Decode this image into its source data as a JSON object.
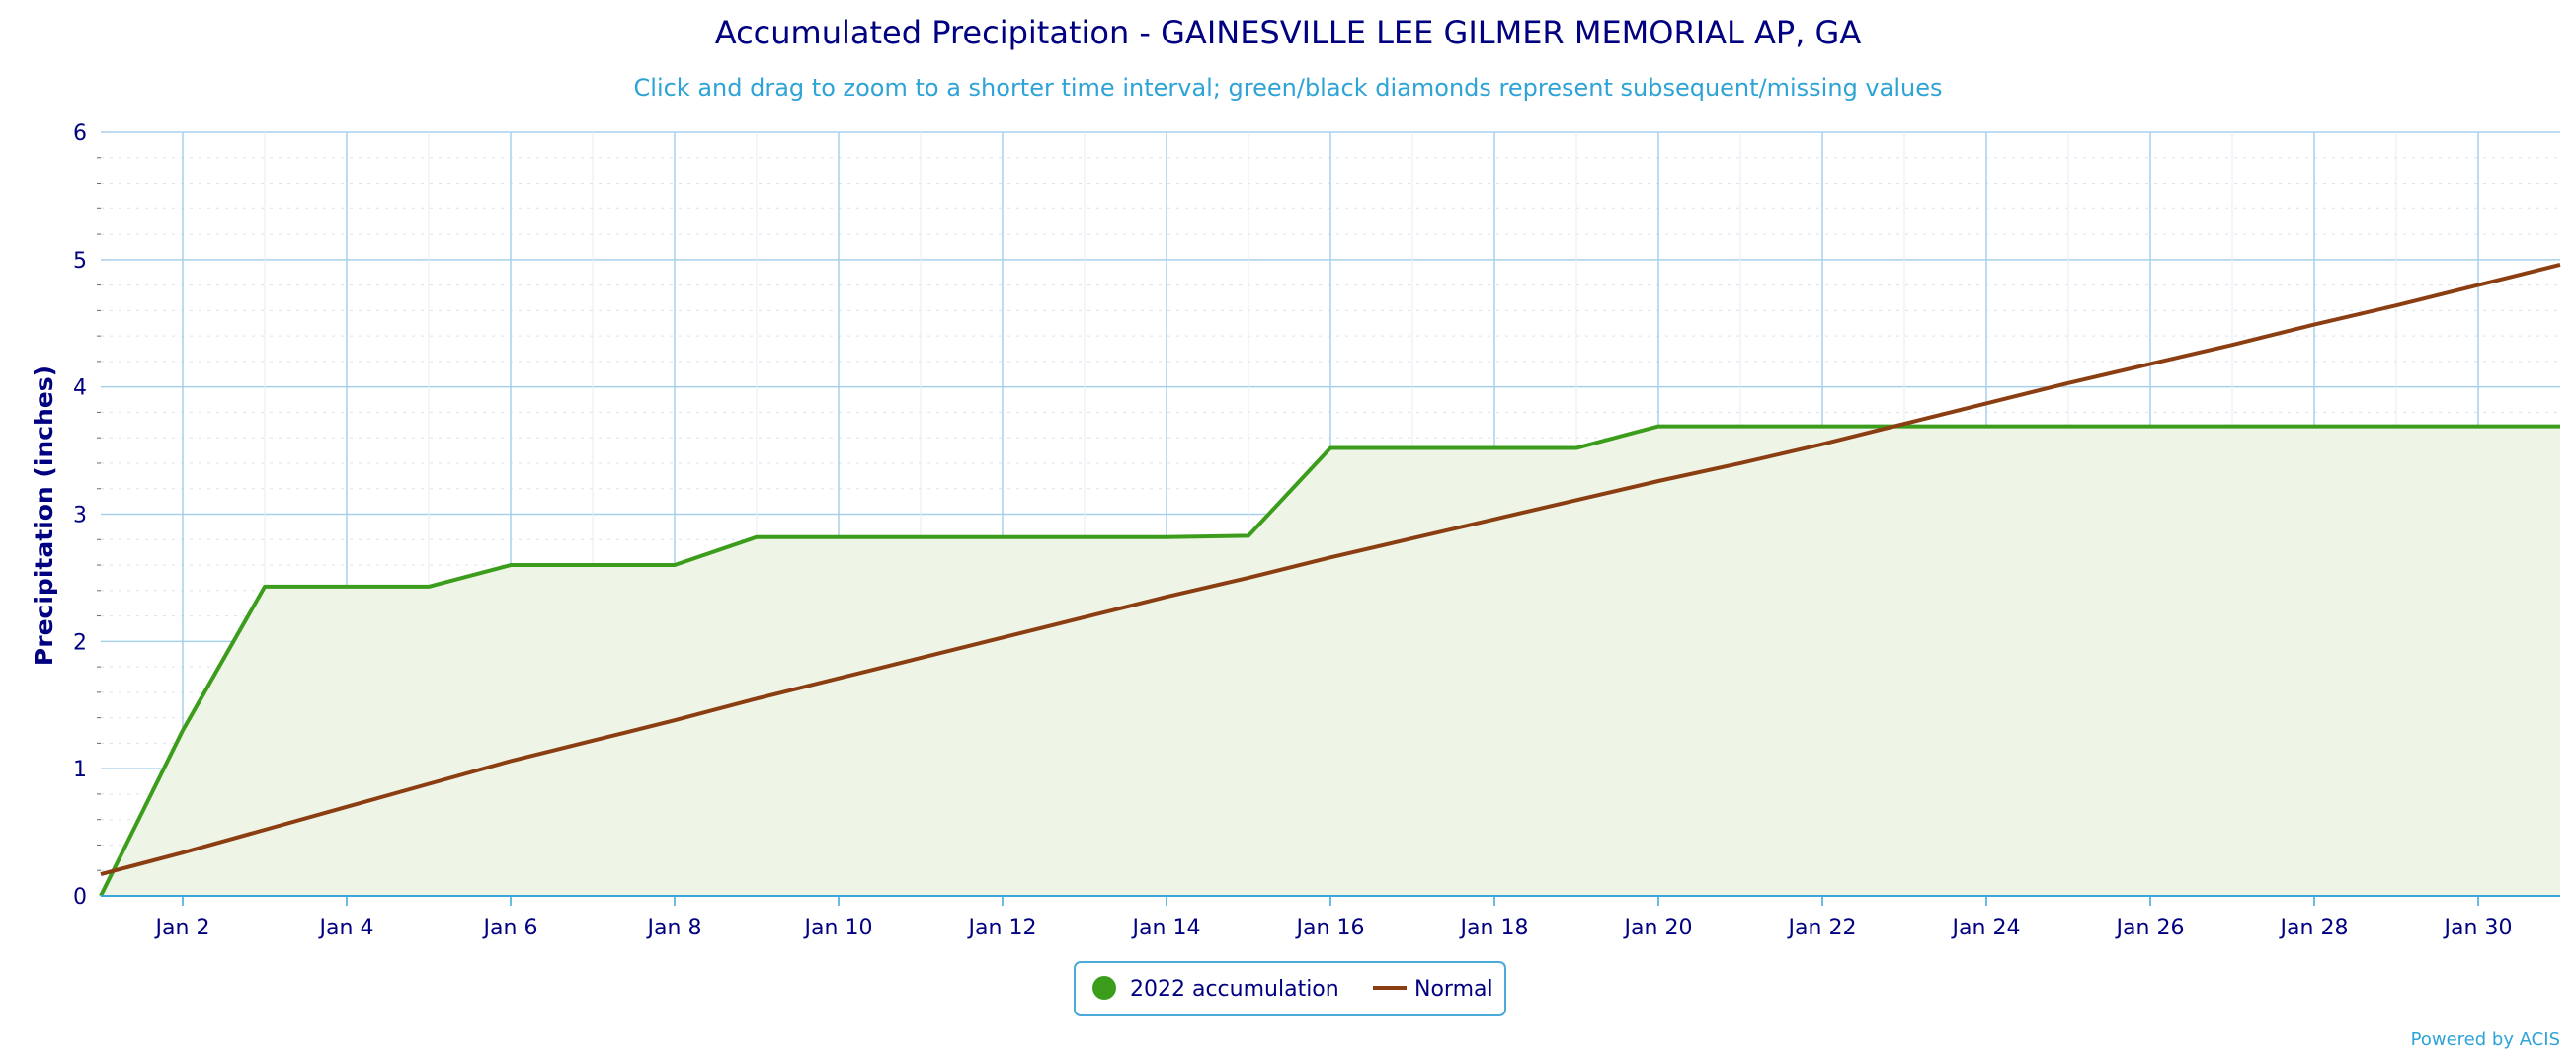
{
  "colors": {
    "title": "#000080",
    "subtitle": "#2ea3d6",
    "grid": "#a7d0ea",
    "minor_grid": "#d8e3eb",
    "accumulation_line": "#3c9d1d",
    "accumulation_fill": "#eef5e7",
    "normal_line": "#8b3e12",
    "axis_line": "#3aa6d9",
    "legend_border": "#4aaad8"
  },
  "chart_data": {
    "type": "area",
    "title": "Accumulated Precipitation - GAINESVILLE LEE GILMER MEMORIAL AP, GA",
    "subtitle": "Click and drag to zoom to a shorter time interval; green/black diamonds represent subsequent/missing values",
    "ylabel": "Precipitation (inches)",
    "xlabel": "",
    "ylim": [
      0,
      6
    ],
    "xlim_day": [
      1,
      31
    ],
    "y_ticks": [
      "0",
      "1",
      "2",
      "3",
      "4",
      "5",
      "6"
    ],
    "x_tick_labels": [
      "Jan 2",
      "Jan 4",
      "Jan 6",
      "Jan 8",
      "Jan 10",
      "Jan 12",
      "Jan 14",
      "Jan 16",
      "Jan 18",
      "Jan 20",
      "Jan 22",
      "Jan 24",
      "Jan 26",
      "Jan 28",
      "Jan 30"
    ],
    "grid": true,
    "legend_position": "bottom-center",
    "series": [
      {
        "name": "2022 accumulation",
        "legend_marker": "dot",
        "x": [
          "Jan 1",
          "Jan 2",
          "Jan 3",
          "Jan 4",
          "Jan 5",
          "Jan 6",
          "Jan 7",
          "Jan 8",
          "Jan 9",
          "Jan 10",
          "Jan 11",
          "Jan 12",
          "Jan 13",
          "Jan 14",
          "Jan 15",
          "Jan 16",
          "Jan 17",
          "Jan 18",
          "Jan 19",
          "Jan 20",
          "Jan 21",
          "Jan 22",
          "Jan 23",
          "Jan 24",
          "Jan 25",
          "Jan 26",
          "Jan 27",
          "Jan 28",
          "Jan 29",
          "Jan 30",
          "Jan 31"
        ],
        "values": [
          0.0,
          1.3,
          2.43,
          2.43,
          2.43,
          2.6,
          2.6,
          2.6,
          2.82,
          2.82,
          2.82,
          2.82,
          2.82,
          2.82,
          2.83,
          3.52,
          3.52,
          3.52,
          3.52,
          3.69,
          3.69,
          3.69,
          3.69,
          3.69,
          3.69,
          3.69,
          3.69,
          3.69,
          3.69,
          3.69,
          3.69
        ]
      },
      {
        "name": "Normal",
        "legend_marker": "line",
        "x": [
          "Jan 1",
          "Jan 2",
          "Jan 3",
          "Jan 4",
          "Jan 5",
          "Jan 6",
          "Jan 7",
          "Jan 8",
          "Jan 9",
          "Jan 10",
          "Jan 11",
          "Jan 12",
          "Jan 13",
          "Jan 14",
          "Jan 15",
          "Jan 16",
          "Jan 17",
          "Jan 18",
          "Jan 19",
          "Jan 20",
          "Jan 21",
          "Jan 22",
          "Jan 23",
          "Jan 24",
          "Jan 25",
          "Jan 26",
          "Jan 27",
          "Jan 28",
          "Jan 29",
          "Jan 30",
          "Jan 31"
        ],
        "values": [
          0.17,
          0.34,
          0.52,
          0.7,
          0.88,
          1.06,
          1.22,
          1.38,
          1.55,
          1.71,
          1.87,
          2.03,
          2.19,
          2.35,
          2.5,
          2.66,
          2.81,
          2.96,
          3.11,
          3.26,
          3.4,
          3.55,
          3.71,
          3.87,
          4.03,
          4.18,
          4.33,
          4.49,
          4.64,
          4.8,
          4.96
        ]
      }
    ]
  },
  "credit": "Powered by ACIS"
}
